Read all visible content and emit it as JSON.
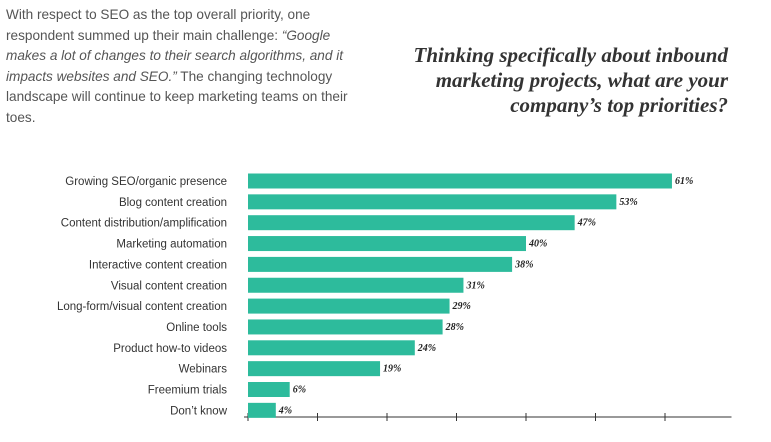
{
  "intro": {
    "before": "With respect to SEO as the top overall priority, one respondent summed up their main challenge: ",
    "quote": "“Google makes a lot of changes to their search algorithms, and it impacts websites and SEO.”",
    "after": " The changing technology landscape will continue to keep marketing teams on their toes."
  },
  "question": {
    "text": "Thinking specifically about inbound marketing projects, what are your company’s top priorities?"
  },
  "chart_data": {
    "type": "bar",
    "orientation": "horizontal",
    "title": "Thinking specifically about inbound marketing projects, what are your company’s top priorities?",
    "categories": [
      "Growing SEO/organic presence",
      "Blog content creation",
      "Content distribution/amplification",
      "Marketing automation",
      "Interactive content creation",
      "Visual content creation",
      "Long-form/visual content creation",
      "Online tools",
      "Product how-to videos",
      "Webinars",
      "Freemium trials",
      "Don’t know"
    ],
    "values": [
      61,
      53,
      47,
      40,
      38,
      31,
      29,
      28,
      24,
      19,
      6,
      4
    ],
    "value_labels": [
      "61%",
      "53%",
      "47%",
      "40%",
      "38%",
      "31%",
      "29%",
      "28%",
      "24%",
      "19%",
      "6%",
      "4%"
    ],
    "xlabel": "",
    "ylabel": "",
    "xlim": [
      0,
      70
    ],
    "x_tick_step": 10,
    "unit": "%",
    "grid": false,
    "bar_color": "#2dbb9c"
  }
}
